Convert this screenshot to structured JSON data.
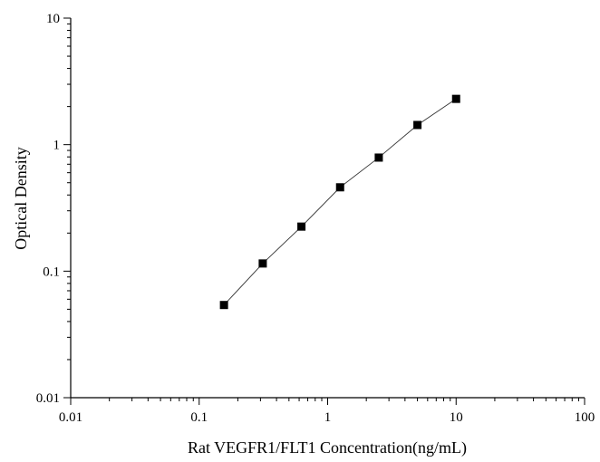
{
  "chart_data": {
    "type": "scatter",
    "xlabel": "Rat VEGFR1/FLT1 Concentration(ng/mL)",
    "ylabel": "Optical Density",
    "xscale": "log",
    "yscale": "log",
    "xlim": [
      0.01,
      100
    ],
    "ylim": [
      0.01,
      10
    ],
    "x_ticks": [
      "0.01",
      "0.1",
      "1",
      "10",
      "100"
    ],
    "y_ticks": [
      "0.01",
      "0.1",
      "1",
      "10"
    ],
    "grid": false,
    "series": [
      {
        "x": [
          0.156,
          0.3125,
          0.625,
          1.25,
          2.5,
          5,
          10
        ],
        "y": [
          0.054,
          0.115,
          0.225,
          0.46,
          0.79,
          1.43,
          2.3
        ],
        "marker": "square",
        "line": true,
        "color": "#000000"
      }
    ]
  }
}
